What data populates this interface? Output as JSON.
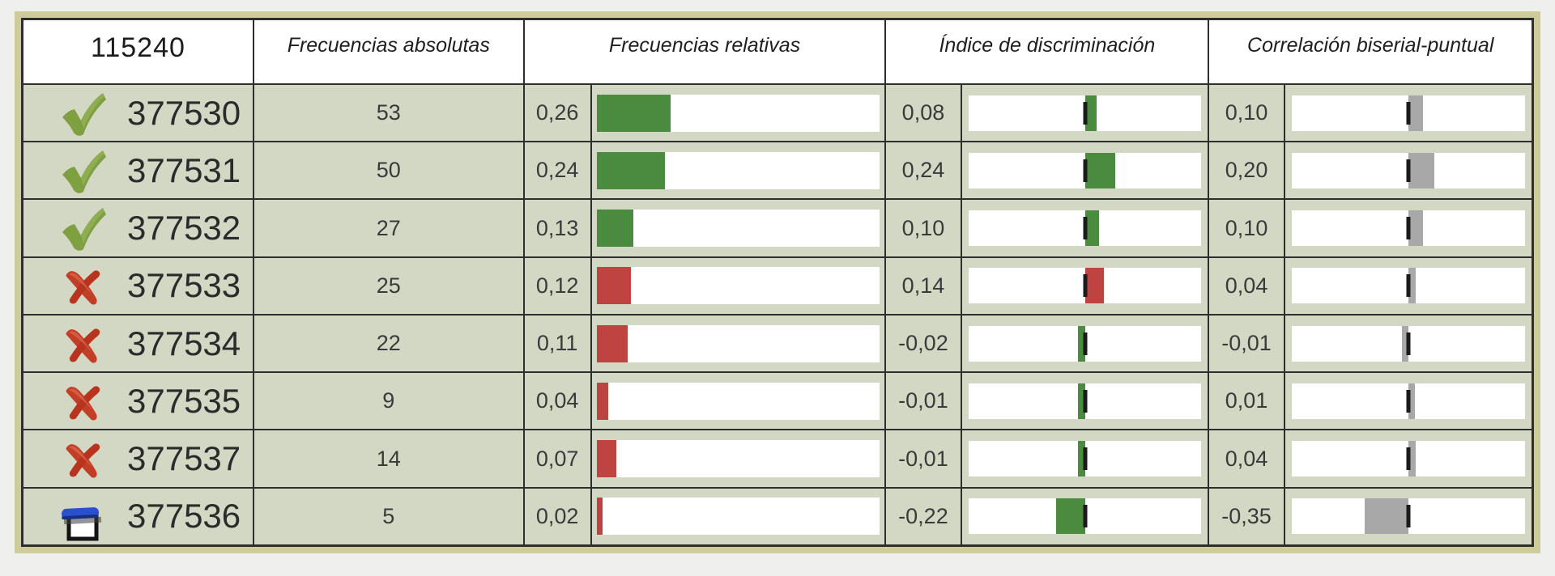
{
  "table": {
    "question_id": "115240",
    "headers": {
      "freq_abs": "Frecuencias absolutas",
      "freq_rel": "Frecuencias relativas",
      "discrimination": "Índice de discriminación",
      "correlation": "Correlación biserial-puntual"
    },
    "colors": {
      "correct_bar": "#4b8b3f",
      "incorrect_bar": "#bf4341",
      "correlation_bar": "#a8a8a8",
      "cell_bg": "#d3d8c5",
      "frame": "#cfcc9b"
    },
    "icons": {
      "correct": "check-icon",
      "incorrect": "cross-icon",
      "blank": "blank-answer-icon"
    },
    "rows": [
      {
        "id": "377530",
        "status": "correct",
        "freq_abs": "53",
        "freq_rel_label": "0,26",
        "freq_rel_value": 0.26,
        "disc_label": "0,08",
        "disc_value": 0.08,
        "disc_color": "green",
        "corr_label": "0,10",
        "corr_value": 0.1
      },
      {
        "id": "377531",
        "status": "correct",
        "freq_abs": "50",
        "freq_rel_label": "0,24",
        "freq_rel_value": 0.24,
        "disc_label": "0,24",
        "disc_value": 0.24,
        "disc_color": "green",
        "corr_label": "0,20",
        "corr_value": 0.2
      },
      {
        "id": "377532",
        "status": "correct",
        "freq_abs": "27",
        "freq_rel_label": "0,13",
        "freq_rel_value": 0.13,
        "disc_label": "0,10",
        "disc_value": 0.1,
        "disc_color": "green",
        "corr_label": "0,10",
        "corr_value": 0.1
      },
      {
        "id": "377533",
        "status": "incorrect",
        "freq_abs": "25",
        "freq_rel_label": "0,12",
        "freq_rel_value": 0.12,
        "disc_label": "0,14",
        "disc_value": 0.14,
        "disc_color": "red",
        "corr_label": "0,04",
        "corr_value": 0.04
      },
      {
        "id": "377534",
        "status": "incorrect",
        "freq_abs": "22",
        "freq_rel_label": "0,11",
        "freq_rel_value": 0.11,
        "disc_label": "-0,02",
        "disc_value": -0.02,
        "disc_color": "green",
        "corr_label": "-0,01",
        "corr_value": -0.01
      },
      {
        "id": "377535",
        "status": "incorrect",
        "freq_abs": "9",
        "freq_rel_label": "0,04",
        "freq_rel_value": 0.04,
        "disc_label": "-0,01",
        "disc_value": -0.01,
        "disc_color": "green",
        "corr_label": "0,01",
        "corr_value": 0.01
      },
      {
        "id": "377537",
        "status": "incorrect",
        "freq_abs": "14",
        "freq_rel_label": "0,07",
        "freq_rel_value": 0.07,
        "disc_label": "-0,01",
        "disc_value": -0.01,
        "disc_color": "green",
        "corr_label": "0,04",
        "corr_value": 0.04
      },
      {
        "id": "377536",
        "status": "blank",
        "freq_abs": "5",
        "freq_rel_label": "0,02",
        "freq_rel_value": 0.02,
        "disc_label": "-0,22",
        "disc_value": -0.22,
        "disc_color": "green",
        "corr_label": "-0,35",
        "corr_value": -0.35
      }
    ]
  },
  "chart_data": {
    "type": "table",
    "title": "115240",
    "columns": [
      "answer_id",
      "frecuencias_absolutas",
      "frecuencias_relativas",
      "indice_de_discriminacion",
      "correlacion_biserial_puntual"
    ],
    "rows": [
      [
        "377530",
        53,
        0.26,
        0.08,
        0.1
      ],
      [
        "377531",
        50,
        0.24,
        0.24,
        0.2
      ],
      [
        "377532",
        27,
        0.13,
        0.1,
        0.1
      ],
      [
        "377533",
        25,
        0.12,
        0.14,
        0.04
      ],
      [
        "377534",
        22,
        0.11,
        -0.02,
        -0.01
      ],
      [
        "377535",
        9,
        0.04,
        -0.01,
        0.01
      ],
      [
        "377537",
        14,
        0.07,
        -0.01,
        0.04
      ],
      [
        "377536",
        5,
        0.02,
        -0.22,
        -0.35
      ]
    ],
    "layout_hints": {
      "relative_frequency_bar_range": [
        0,
        1
      ],
      "diverging_bar_range": [
        -1,
        1
      ],
      "diverging_zero_marker": "black vertical line at center"
    }
  }
}
